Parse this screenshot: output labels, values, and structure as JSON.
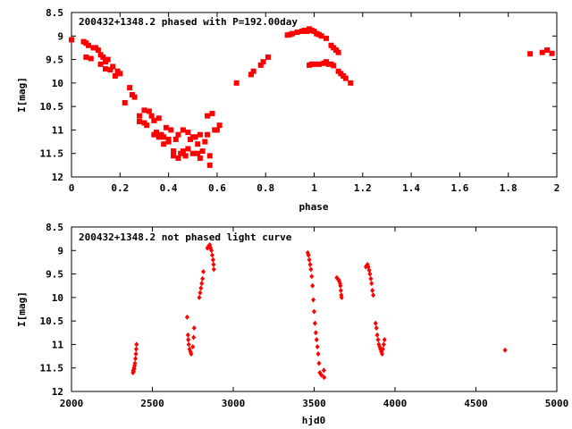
{
  "chart_data": [
    {
      "type": "scatter",
      "title": "200432+1348.2 phased with P=192.00day",
      "xlabel": "phase",
      "ylabel": "I[mag]",
      "xlim": [
        0,
        2
      ],
      "ylim": [
        8.5,
        12
      ],
      "y_inverted": true,
      "x_ticks": [
        "0",
        "0.2",
        "0.4",
        "0.6",
        "0.8",
        "1",
        "1.2",
        "1.4",
        "1.6",
        "1.8",
        "2"
      ],
      "y_ticks": [
        "8.5",
        "9",
        "9.5",
        "10",
        "10.5",
        "11",
        "11.5",
        "12"
      ],
      "marker": "filled-square",
      "color": "#ff0000",
      "points": [
        [
          0.0,
          9.08
        ],
        [
          0.05,
          9.12
        ],
        [
          0.06,
          9.15
        ],
        [
          0.07,
          9.2
        ],
        [
          0.06,
          9.45
        ],
        [
          0.08,
          9.48
        ],
        [
          0.09,
          9.25
        ],
        [
          0.1,
          9.25
        ],
        [
          0.11,
          9.3
        ],
        [
          0.12,
          9.4
        ],
        [
          0.12,
          9.6
        ],
        [
          0.13,
          9.45
        ],
        [
          0.14,
          9.55
        ],
        [
          0.15,
          9.5
        ],
        [
          0.14,
          9.7
        ],
        [
          0.16,
          9.72
        ],
        [
          0.17,
          9.65
        ],
        [
          0.18,
          9.85
        ],
        [
          0.19,
          9.75
        ],
        [
          0.2,
          9.8
        ],
        [
          0.22,
          10.42
        ],
        [
          0.24,
          10.1
        ],
        [
          0.25,
          10.25
        ],
        [
          0.26,
          10.3
        ],
        [
          0.28,
          10.82
        ],
        [
          0.28,
          10.7
        ],
        [
          0.3,
          10.58
        ],
        [
          0.3,
          10.85
        ],
        [
          0.31,
          10.9
        ],
        [
          0.32,
          10.6
        ],
        [
          0.33,
          10.7
        ],
        [
          0.34,
          10.8
        ],
        [
          0.34,
          11.1
        ],
        [
          0.35,
          11.05
        ],
        [
          0.36,
          10.75
        ],
        [
          0.36,
          11.15
        ],
        [
          0.37,
          11.1
        ],
        [
          0.38,
          11.3
        ],
        [
          0.38,
          11.15
        ],
        [
          0.39,
          10.95
        ],
        [
          0.4,
          11.2
        ],
        [
          0.4,
          11.25
        ],
        [
          0.41,
          11.0
        ],
        [
          0.42,
          11.45
        ],
        [
          0.42,
          11.55
        ],
        [
          0.43,
          11.2
        ],
        [
          0.44,
          11.6
        ],
        [
          0.44,
          11.1
        ],
        [
          0.45,
          11.5
        ],
        [
          0.46,
          11.0
        ],
        [
          0.46,
          11.45
        ],
        [
          0.47,
          11.55
        ],
        [
          0.48,
          11.05
        ],
        [
          0.48,
          11.4
        ],
        [
          0.49,
          11.2
        ],
        [
          0.5,
          11.5
        ],
        [
          0.5,
          11.15
        ],
        [
          0.51,
          11.15
        ],
        [
          0.52,
          11.5
        ],
        [
          0.52,
          11.3
        ],
        [
          0.53,
          11.1
        ],
        [
          0.53,
          11.6
        ],
        [
          0.54,
          11.45
        ],
        [
          0.55,
          11.25
        ],
        [
          0.56,
          11.1
        ],
        [
          0.56,
          10.7
        ],
        [
          0.57,
          11.55
        ],
        [
          0.57,
          11.75
        ],
        [
          0.58,
          10.65
        ],
        [
          0.59,
          11.0
        ],
        [
          0.6,
          11.0
        ],
        [
          0.61,
          10.9
        ],
        [
          0.68,
          10.0
        ],
        [
          0.74,
          9.82
        ],
        [
          0.75,
          9.75
        ],
        [
          0.78,
          9.62
        ],
        [
          0.79,
          9.55
        ],
        [
          0.81,
          9.45
        ],
        [
          0.89,
          8.98
        ],
        [
          0.9,
          8.97
        ],
        [
          0.91,
          8.95
        ],
        [
          0.93,
          8.92
        ],
        [
          0.95,
          8.9
        ],
        [
          0.96,
          8.88
        ],
        [
          0.97,
          8.9
        ],
        [
          0.98,
          8.85
        ],
        [
          0.99,
          8.88
        ],
        [
          1.0,
          8.9
        ],
        [
          1.01,
          8.95
        ],
        [
          1.02,
          8.97
        ],
        [
          1.03,
          9.0
        ],
        [
          1.05,
          9.05
        ],
        [
          1.07,
          9.2
        ],
        [
          1.08,
          9.25
        ],
        [
          1.09,
          9.3
        ],
        [
          1.1,
          9.35
        ],
        [
          0.98,
          9.62
        ],
        [
          0.99,
          9.6
        ],
        [
          1.0,
          9.6
        ],
        [
          1.02,
          9.6
        ],
        [
          1.04,
          9.58
        ],
        [
          1.05,
          9.55
        ],
        [
          1.06,
          9.6
        ],
        [
          1.07,
          9.6
        ],
        [
          1.08,
          9.63
        ],
        [
          1.1,
          9.75
        ],
        [
          1.11,
          9.8
        ],
        [
          1.12,
          9.85
        ],
        [
          1.13,
          9.9
        ],
        [
          1.15,
          10.0
        ],
        [
          1.89,
          9.38
        ],
        [
          1.94,
          9.35
        ],
        [
          1.96,
          9.3
        ],
        [
          1.98,
          9.37
        ]
      ]
    },
    {
      "type": "scatter",
      "title": "200432+1348.2 not phased light curve",
      "xlabel": "hjd0",
      "ylabel": "I[mag]",
      "xlim": [
        2000,
        5000
      ],
      "ylim": [
        8.5,
        12
      ],
      "y_inverted": true,
      "x_ticks": [
        "2000",
        "2500",
        "3000",
        "3500",
        "4000",
        "4500",
        "5000"
      ],
      "y_ticks": [
        "8.5",
        "9",
        "9.5",
        "10",
        "10.5",
        "11",
        "11.5",
        "12"
      ],
      "marker": "filled-diamond",
      "color": "#ff0000",
      "points": [
        [
          2380,
          11.6
        ],
        [
          2382,
          11.55
        ],
        [
          2384,
          11.58
        ],
        [
          2386,
          11.5
        ],
        [
          2388,
          11.52
        ],
        [
          2390,
          11.45
        ],
        [
          2392,
          11.4
        ],
        [
          2395,
          11.3
        ],
        [
          2398,
          11.2
        ],
        [
          2400,
          11.1
        ],
        [
          2402,
          11.0
        ],
        [
          2715,
          10.42
        ],
        [
          2720,
          10.8
        ],
        [
          2722,
          10.9
        ],
        [
          2725,
          11.0
        ],
        [
          2730,
          11.1
        ],
        [
          2735,
          11.15
        ],
        [
          2740,
          11.2
        ],
        [
          2750,
          11.05
        ],
        [
          2755,
          10.85
        ],
        [
          2758,
          10.65
        ],
        [
          2790,
          10.0
        ],
        [
          2795,
          9.9
        ],
        [
          2800,
          9.8
        ],
        [
          2805,
          9.7
        ],
        [
          2810,
          9.6
        ],
        [
          2815,
          9.45
        ],
        [
          2840,
          8.95
        ],
        [
          2845,
          8.92
        ],
        [
          2850,
          8.9
        ],
        [
          2855,
          8.88
        ],
        [
          2860,
          8.95
        ],
        [
          2865,
          9.0
        ],
        [
          2870,
          9.1
        ],
        [
          2875,
          9.2
        ],
        [
          2878,
          9.3
        ],
        [
          2880,
          9.4
        ],
        [
          3460,
          9.05
        ],
        [
          3465,
          9.1
        ],
        [
          3470,
          9.2
        ],
        [
          3475,
          9.3
        ],
        [
          3480,
          9.4
        ],
        [
          3485,
          9.55
        ],
        [
          3490,
          9.75
        ],
        [
          3495,
          10.05
        ],
        [
          3500,
          10.3
        ],
        [
          3505,
          10.55
        ],
        [
          3510,
          10.75
        ],
        [
          3515,
          10.9
        ],
        [
          3520,
          11.05
        ],
        [
          3525,
          11.2
        ],
        [
          3530,
          11.4
        ],
        [
          3535,
          11.6
        ],
        [
          3545,
          11.65
        ],
        [
          3560,
          11.55
        ],
        [
          3562,
          11.7
        ],
        [
          3640,
          9.58
        ],
        [
          3645,
          9.6
        ],
        [
          3650,
          9.62
        ],
        [
          3655,
          9.65
        ],
        [
          3660,
          9.7
        ],
        [
          3662,
          9.75
        ],
        [
          3665,
          9.85
        ],
        [
          3668,
          9.95
        ],
        [
          3670,
          10.0
        ],
        [
          3820,
          9.35
        ],
        [
          3825,
          9.32
        ],
        [
          3830,
          9.3
        ],
        [
          3835,
          9.35
        ],
        [
          3840,
          9.42
        ],
        [
          3845,
          9.5
        ],
        [
          3850,
          9.6
        ],
        [
          3855,
          9.7
        ],
        [
          3860,
          9.85
        ],
        [
          3865,
          9.95
        ],
        [
          3880,
          10.55
        ],
        [
          3885,
          10.65
        ],
        [
          3890,
          10.8
        ],
        [
          3895,
          10.9
        ],
        [
          3900,
          11.0
        ],
        [
          3905,
          11.05
        ],
        [
          3910,
          11.1
        ],
        [
          3915,
          11.15
        ],
        [
          3920,
          11.2
        ],
        [
          3925,
          11.1
        ],
        [
          3930,
          11.0
        ],
        [
          3935,
          10.9
        ],
        [
          4680,
          11.12
        ]
      ]
    }
  ]
}
